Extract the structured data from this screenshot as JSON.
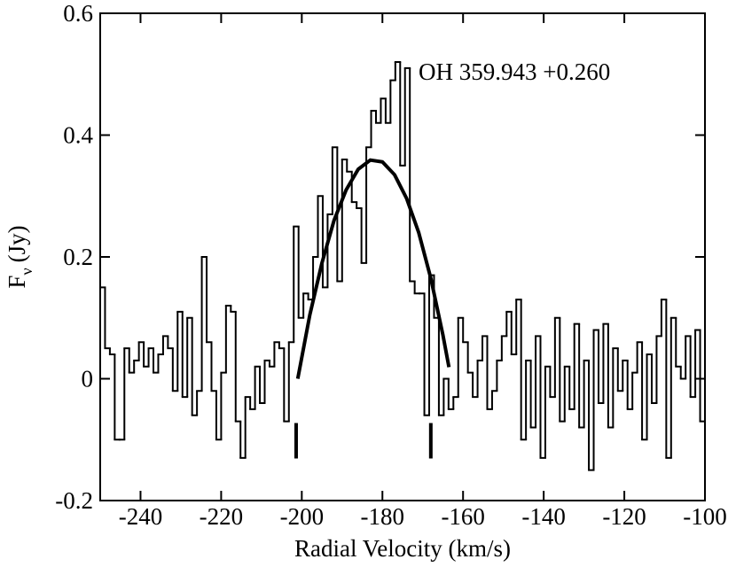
{
  "chart_data": {
    "type": "step",
    "xlabel": "Radial Velocity (km/s)",
    "ylabel": [
      "F",
      "ν",
      "(Jy)"
    ],
    "annotation": "OH 359.943 +0.260",
    "xlim": [
      -250,
      -100
    ],
    "xticks": [
      -240,
      -220,
      -200,
      -180,
      -160,
      -140,
      -120,
      -100
    ],
    "ylim": [
      -0.2,
      0.6
    ],
    "yticks": [
      -0.2,
      0,
      0.2,
      0.4,
      0.6
    ],
    "markers": [
      -201.4,
      -168
    ],
    "series": [
      {
        "color": "#000000",
        "x": [
          -250.0,
          -248.8,
          -247.6,
          -246.4,
          -245.2,
          -244.0,
          -242.8,
          -241.6,
          -240.4,
          -239.2,
          -238.0,
          -236.8,
          -235.6,
          -234.4,
          -233.2,
          -232.0,
          -230.8,
          -229.6,
          -228.4,
          -227.2,
          -226.0,
          -224.8,
          -223.6,
          -222.4,
          -221.2,
          -220.0,
          -218.8,
          -217.6,
          -216.4,
          -215.2,
          -214.0,
          -212.8,
          -211.6,
          -210.4,
          -209.2,
          -208.0,
          -206.8,
          -205.6,
          -204.4,
          -203.2,
          -202.0,
          -200.8,
          -199.6,
          -198.4,
          -197.2,
          -196.0,
          -194.8,
          -193.6,
          -192.4,
          -191.2,
          -190.0,
          -188.8,
          -187.6,
          -186.4,
          -185.2,
          -184.0,
          -182.8,
          -181.6,
          -180.4,
          -179.2,
          -178.0,
          -176.8,
          -175.6,
          -174.4,
          -173.2,
          -172.0,
          -170.8,
          -169.6,
          -168.4,
          -167.2,
          -166.0,
          -164.8,
          -163.6,
          -162.4,
          -161.2,
          -160.0,
          -158.8,
          -157.6,
          -156.4,
          -155.2,
          -154.0,
          -152.8,
          -151.6,
          -150.4,
          -149.2,
          -148.0,
          -146.8,
          -145.6,
          -144.4,
          -143.2,
          -142.0,
          -140.8,
          -139.6,
          -138.4,
          -137.2,
          -136.0,
          -134.8,
          -133.6,
          -132.4,
          -131.2,
          -130.0,
          -128.8,
          -127.6,
          -126.4,
          -125.2,
          -124.0,
          -122.8,
          -121.6,
          -120.4,
          -119.2,
          -118.0,
          -116.8,
          -115.6,
          -114.4,
          -113.2,
          -112.0,
          -110.8,
          -109.6,
          -108.4,
          -107.2,
          -106.0,
          -104.8,
          -103.6,
          -102.4,
          -101.2
        ],
        "values": [
          0.15,
          0.05,
          0.04,
          -0.1,
          -0.1,
          0.05,
          0.01,
          0.03,
          0.06,
          0.02,
          0.05,
          0.01,
          0.04,
          0.07,
          0.05,
          -0.02,
          0.11,
          -0.03,
          0.1,
          -0.06,
          -0.02,
          0.2,
          0.06,
          -0.02,
          -0.1,
          0.01,
          0.12,
          0.11,
          -0.07,
          -0.13,
          -0.03,
          -0.05,
          0.02,
          -0.04,
          0.03,
          0.02,
          0.06,
          0.05,
          -0.07,
          0.06,
          0.25,
          0.1,
          0.14,
          0.13,
          0.2,
          0.3,
          0.15,
          0.27,
          0.38,
          0.16,
          0.36,
          0.34,
          0.29,
          0.28,
          0.19,
          0.38,
          0.44,
          0.42,
          0.46,
          0.42,
          0.49,
          0.52,
          0.35,
          0.51,
          0.16,
          0.14,
          0.14,
          -0.06,
          0.17,
          0.1,
          -0.06,
          0.0,
          -0.05,
          -0.03,
          0.1,
          0.06,
          0.01,
          -0.03,
          0.03,
          0.07,
          -0.05,
          -0.02,
          0.03,
          0.07,
          0.11,
          0.04,
          0.13,
          -0.1,
          0.03,
          -0.08,
          0.07,
          -0.13,
          0.02,
          -0.03,
          0.1,
          -0.07,
          0.02,
          -0.05,
          0.09,
          -0.08,
          0.03,
          -0.15,
          0.08,
          -0.04,
          0.09,
          -0.08,
          0.05,
          -0.02,
          0.03,
          -0.05,
          0.01,
          0.06,
          -0.1,
          0.04,
          -0.04,
          0.07,
          0.13,
          -0.13,
          0.1,
          0.02,
          0.0,
          0.07,
          -0.03,
          0.08,
          -0.07
        ]
      },
      {
        "color": "#000000",
        "x": [
          -201,
          -198,
          -195,
          -192,
          -189,
          -186,
          -183,
          -180,
          -177,
          -174,
          -171,
          -168,
          -165,
          -163.5
        ],
        "values": [
          0,
          0.105,
          0.19,
          0.26,
          0.31,
          0.344,
          0.359,
          0.356,
          0.335,
          0.296,
          0.24,
          0.165,
          0.072,
          0.019
        ]
      }
    ]
  }
}
